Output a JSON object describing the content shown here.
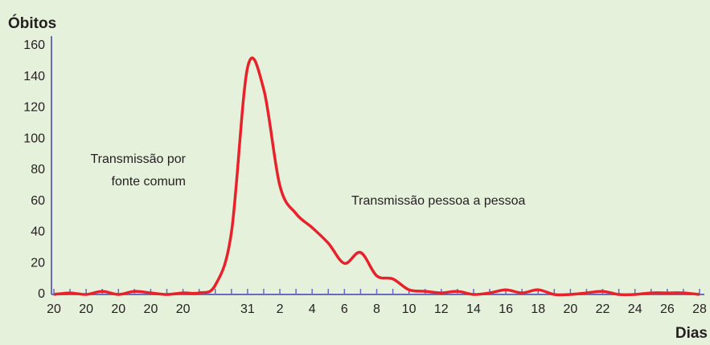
{
  "chart_data": {
    "type": "line",
    "y_label": "Óbitos",
    "x_label": "Dias",
    "annotations": [
      "Transmissão por",
      "fonte comum",
      "Transmissão pessoa a pessoa"
    ],
    "categories": [
      "20",
      null,
      "20",
      null,
      "20",
      null,
      "20",
      null,
      "20",
      null,
      null,
      null,
      "31",
      null,
      "2",
      null,
      "4",
      null,
      "6",
      null,
      "8",
      null,
      "10",
      null,
      "12",
      null,
      "14",
      null,
      "16",
      null,
      "18",
      null,
      "20",
      null,
      "22",
      null,
      "24",
      null,
      "26",
      null,
      "28"
    ],
    "series": [
      {
        "name": "Óbitos",
        "color": "#e8212a",
        "values": [
          0,
          1,
          0,
          2,
          0,
          2,
          1,
          0,
          1,
          1,
          6,
          40,
          146,
          132,
          70,
          52,
          43,
          33,
          20,
          27,
          12,
          10,
          3,
          2,
          1,
          2,
          0,
          1,
          3,
          1,
          3,
          0,
          0,
          1,
          2,
          0,
          0,
          1,
          1,
          1,
          0
        ]
      }
    ],
    "ylim": [
      0,
      160
    ],
    "yticks": [
      0,
      20,
      40,
      60,
      80,
      100,
      120,
      140,
      160
    ],
    "axis_color": "#6a6ac0",
    "grid": false
  }
}
